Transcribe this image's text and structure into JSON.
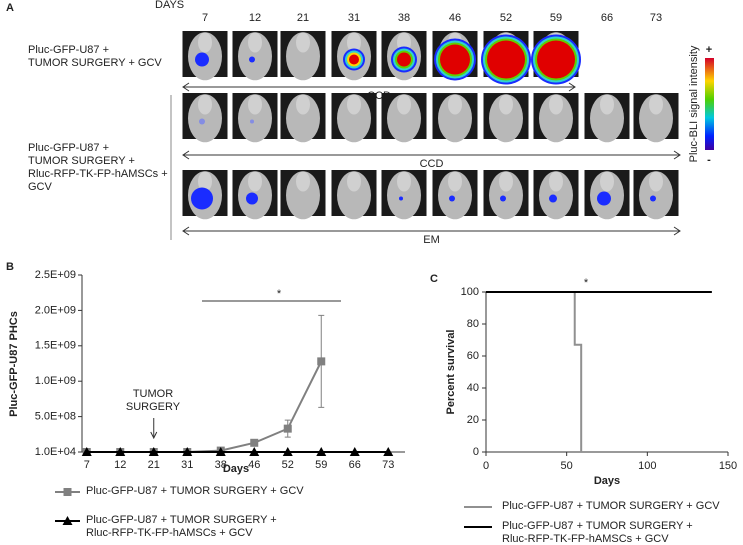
{
  "panel_a": {
    "label": "A",
    "days_label": "DAYS",
    "days": [
      "7",
      "12",
      "21",
      "31",
      "38",
      "46",
      "52",
      "59",
      "66",
      "73"
    ],
    "rows": [
      {
        "label_lines": [
          "Pluc-GFP-U87 +",
          "TUMOR SURGERY + GCV"
        ],
        "imaging": "CCD"
      },
      {
        "label_lines": [
          "Pluc-GFP-U87 +",
          "TUMOR SURGERY +",
          "Rluc-RFP-TK-FP-hAMSCs +",
          "GCV"
        ],
        "imaging": "CCD"
      },
      {
        "imaging": "EM"
      }
    ],
    "colorbar_label": "Pluc-BLI signal intensity",
    "colorbar_max": "+",
    "colorbar_min": "-"
  },
  "chart_data": [
    {
      "type": "line",
      "panel": "B",
      "x_label": "Days",
      "y_label": "Pluc-GFP-U87 PHCs",
      "categories": [
        "7",
        "12",
        "21",
        "31",
        "38",
        "46",
        "52",
        "59",
        "66",
        "73"
      ],
      "ylim": [
        10000,
        2500000000
      ],
      "yticks": [
        {
          "value": 10000,
          "label": "1.0E+04"
        },
        {
          "value": 500000000,
          "label": "5.0E+08"
        },
        {
          "value": 1000000000,
          "label": "1.0E+09"
        },
        {
          "value": 1500000000,
          "label": "1.5E+09"
        },
        {
          "value": 2000000000,
          "label": "2.0E+09"
        },
        {
          "value": 2500000000,
          "label": "2.5E+09"
        }
      ],
      "annotation": "TUMOR SURGERY",
      "significance": "*",
      "series": [
        {
          "name": "Pluc-GFP-U87 + TUMOR SURGERY + GCV",
          "color": "#808080",
          "marker": "square",
          "values": [
            10000,
            10000,
            10000,
            10000,
            20000000,
            130000000,
            330000000,
            1280000000,
            null,
            null
          ],
          "errors": [
            0,
            0,
            0,
            0,
            5000000,
            15000000,
            120000000,
            650000000,
            null,
            null
          ]
        },
        {
          "name": "Pluc-GFP-U87 + TUMOR SURGERY + Rluc-RFP-TK-FP-hAMSCs + GCV",
          "color": "#000000",
          "marker": "triangle",
          "values": [
            10000,
            10000,
            10000,
            10000,
            10000,
            10000,
            10000,
            10000,
            10000,
            10000
          ]
        }
      ]
    },
    {
      "type": "step",
      "panel": "C",
      "x_label": "Days",
      "y_label": "Percent survival",
      "significance": "*",
      "xlim": [
        0,
        150
      ],
      "xticks": [
        0,
        50,
        100,
        150
      ],
      "ylim": [
        0,
        100
      ],
      "yticks": [
        0,
        20,
        40,
        60,
        80,
        100
      ],
      "series": [
        {
          "name": "Pluc-GFP-U87 + TUMOR SURGERY + GCV",
          "color": "#909090",
          "x": [
            0,
            55,
            55,
            59,
            59
          ],
          "values": [
            100,
            100,
            67,
            67,
            0
          ]
        },
        {
          "name": "Pluc-GFP-U87 + TUMOR SURGERY + Rluc-RFP-TK-FP-hAMSCs + GCV",
          "color": "#000000",
          "x": [
            0,
            140
          ],
          "values": [
            100,
            100
          ]
        }
      ]
    }
  ]
}
